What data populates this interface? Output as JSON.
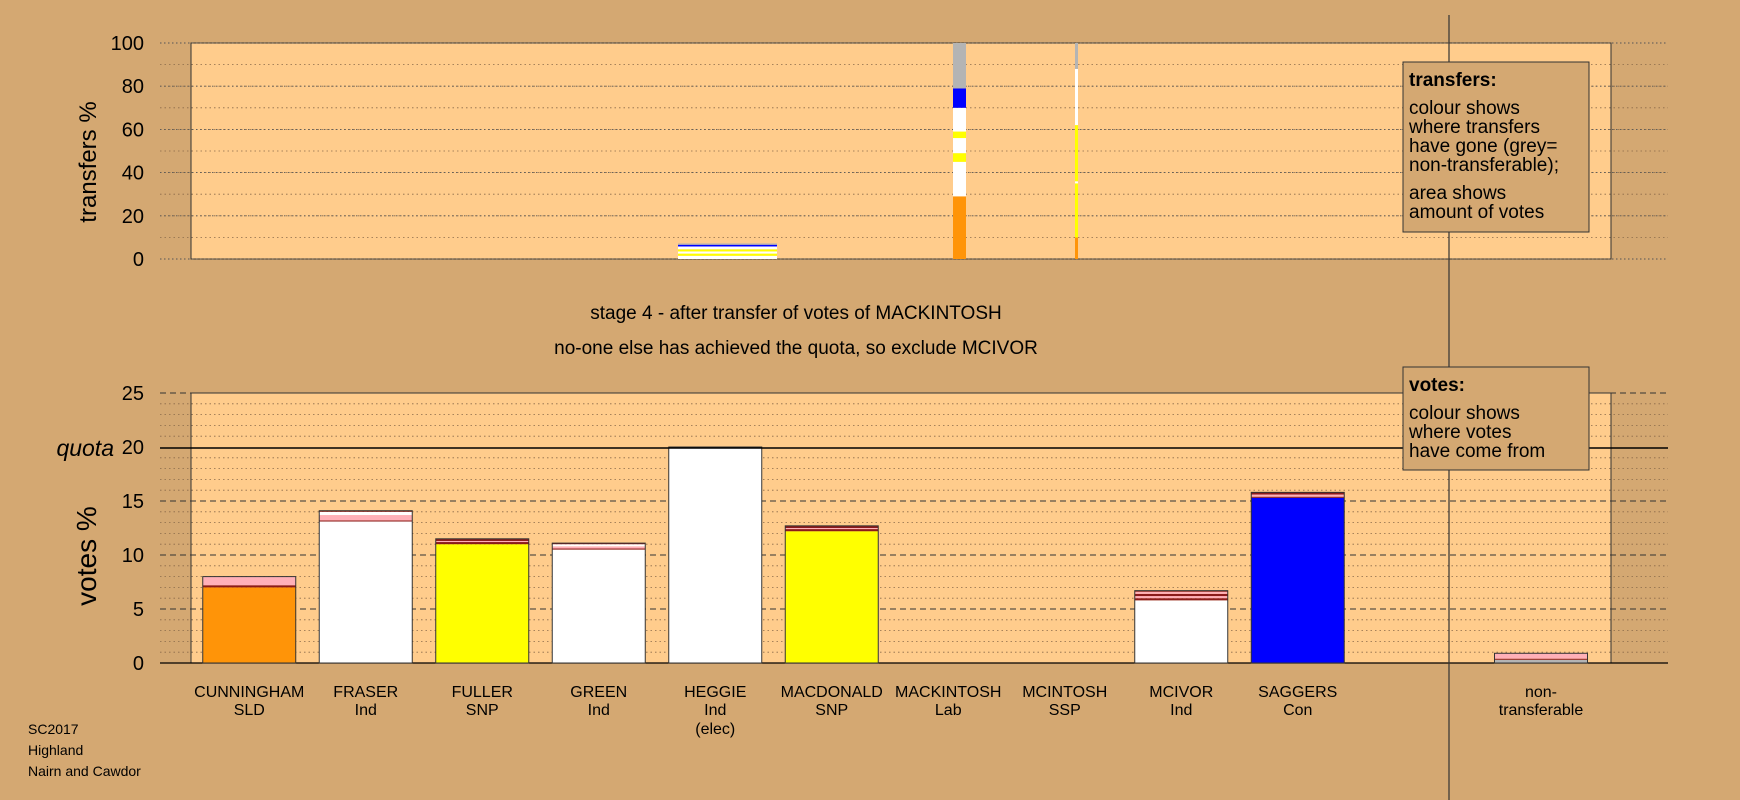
{
  "colors": {
    "background": "#d4a872",
    "plot_bg": "#ffcc8c",
    "SLD": "#ff9408",
    "Ind": "#ffffff",
    "SNP": "#ffff00",
    "Con": "#0000ff",
    "Lab": "#e00000",
    "SSP": "#ff3030",
    "nontransferable": "#b4b4b4",
    "prior_red": "#8b1a1a",
    "prior_pink": "#ffb0b8"
  },
  "chart_data": [
    {
      "type": "bar",
      "name": "transfers",
      "ylabel": "transfers %",
      "ylim": [
        0,
        100
      ],
      "yticks": [
        0,
        20,
        40,
        60,
        80,
        100
      ],
      "columns": [
        {
          "candidate": "HEGGIE",
          "width_share": 0.84,
          "segments": [
            {
              "from": 0,
              "to": 1.5,
              "color": "#ffffff"
            },
            {
              "from": 1.5,
              "to": 2.5,
              "color": "#ffff00"
            },
            {
              "from": 2.5,
              "to": 3.5,
              "color": "#ffffff"
            },
            {
              "from": 3.5,
              "to": 4.5,
              "color": "#ffff00"
            },
            {
              "from": 4.5,
              "to": 5.8,
              "color": "#ffffff"
            },
            {
              "from": 5.8,
              "to": 6.6,
              "color": "#0000ff"
            },
            {
              "from": 6.6,
              "to": 7.2,
              "color": "#b4b4b4"
            }
          ]
        },
        {
          "candidate": "MACKINTOSH",
          "width_share": 0.12,
          "segments": [
            {
              "from": 0,
              "to": 29,
              "color": "#ff9408"
            },
            {
              "from": 29,
              "to": 45,
              "color": "#ffffff"
            },
            {
              "from": 45,
              "to": 49,
              "color": "#ffff00"
            },
            {
              "from": 49,
              "to": 56,
              "color": "#ffffff"
            },
            {
              "from": 56,
              "to": 59,
              "color": "#ffff00"
            },
            {
              "from": 59,
              "to": 70,
              "color": "#ffffff"
            },
            {
              "from": 70,
              "to": 79,
              "color": "#0000ff"
            },
            {
              "from": 79,
              "to": 100,
              "color": "#b4b4b4"
            }
          ]
        },
        {
          "candidate": "MCINTOSH",
          "width_share": 0.04,
          "segments": [
            {
              "from": 0,
              "to": 10,
              "color": "#ff9408"
            },
            {
              "from": 10,
              "to": 35,
              "color": "#ffff00"
            },
            {
              "from": 35,
              "to": 36,
              "color": "#ffffff"
            },
            {
              "from": 36,
              "to": 62,
              "color": "#ffff00"
            },
            {
              "from": 62,
              "to": 88,
              "color": "#ffffff"
            },
            {
              "from": 88,
              "to": 100,
              "color": "#b4b4b4"
            }
          ]
        }
      ]
    },
    {
      "type": "bar",
      "name": "votes",
      "ylabel": "votes %",
      "ylim": [
        0,
        25
      ],
      "yticks": [
        0,
        5,
        10,
        15,
        20,
        25
      ],
      "quota": 20,
      "quota_label": "quota",
      "categories": [
        {
          "name": "CUNNINGHAM",
          "party": "SLD",
          "extra": ""
        },
        {
          "name": "FRASER",
          "party": "Ind",
          "extra": ""
        },
        {
          "name": "FULLER",
          "party": "SNP",
          "extra": ""
        },
        {
          "name": "GREEN",
          "party": "Ind",
          "extra": ""
        },
        {
          "name": "HEGGIE",
          "party": "Ind",
          "extra": "(elec)"
        },
        {
          "name": "MACDONALD",
          "party": "SNP",
          "extra": ""
        },
        {
          "name": "MACKINTOSH",
          "party": "Lab",
          "extra": ""
        },
        {
          "name": "MCINTOSH",
          "party": "SSP",
          "extra": ""
        },
        {
          "name": "MCIVOR",
          "party": "Ind",
          "extra": ""
        },
        {
          "name": "SAGGERS",
          "party": "Con",
          "extra": ""
        }
      ],
      "nontransferable_label": [
        "non-",
        "transferable"
      ],
      "stacks": [
        [
          {
            "v": 7.0,
            "c": "#ff9408"
          },
          {
            "v": 0.2,
            "c": "#8b1a1a"
          },
          {
            "v": 0.8,
            "c": "#ffb0b8"
          }
        ],
        [
          {
            "v": 13.1,
            "c": "#ffffff"
          },
          {
            "v": 0.1,
            "c": "#8b1a1a"
          },
          {
            "v": 0.5,
            "c": "#ffb0b8"
          },
          {
            "v": 0.3,
            "c": "#ffffff"
          },
          {
            "v": 0.1,
            "c": "#8b1a1a"
          }
        ],
        [
          {
            "v": 11.0,
            "c": "#ffff00"
          },
          {
            "v": 0.2,
            "c": "#8b1a1a"
          },
          {
            "v": 0.1,
            "c": "#ffb0b8"
          },
          {
            "v": 0.2,
            "c": "#8b1a1a"
          }
        ],
        [
          {
            "v": 10.5,
            "c": "#ffffff"
          },
          {
            "v": 0.1,
            "c": "#8b1a1a"
          },
          {
            "v": 0.2,
            "c": "#ffb0b8"
          },
          {
            "v": 0.2,
            "c": "#ffffff"
          },
          {
            "v": 0.1,
            "c": "#8b1a1a"
          }
        ],
        [
          {
            "v": 20.0,
            "c": "#ffffff"
          }
        ],
        [
          {
            "v": 12.2,
            "c": "#ffff00"
          },
          {
            "v": 0.2,
            "c": "#8b1a1a"
          },
          {
            "v": 0.1,
            "c": "#ffb0b8"
          },
          {
            "v": 0.2,
            "c": "#8b1a1a"
          }
        ],
        [],
        [],
        [
          {
            "v": 5.8,
            "c": "#ffffff"
          },
          {
            "v": 0.2,
            "c": "#8b1a1a"
          },
          {
            "v": 0.2,
            "c": "#ffb0b8"
          },
          {
            "v": 0.2,
            "c": "#8b1a1a"
          },
          {
            "v": 0.2,
            "c": "#ffb0b8"
          },
          {
            "v": 0.1,
            "c": "#8b1a1a"
          }
        ],
        [
          {
            "v": 15.3,
            "c": "#0000ff"
          },
          {
            "v": 0.1,
            "c": "#8b1a1a"
          },
          {
            "v": 0.2,
            "c": "#ffb0b8"
          },
          {
            "v": 0.2,
            "c": "#8b1a1a"
          }
        ]
      ],
      "nontransferable_stack": [
        {
          "v": 0.3,
          "c": "#b4b4b4"
        },
        {
          "v": 0.1,
          "c": "#8b1a1a"
        },
        {
          "v": 0.5,
          "c": "#ffb0b8"
        }
      ]
    }
  ],
  "stage_line1": "stage 4 - after transfer of votes of MACKINTOSH",
  "stage_line2": "no-one else has achieved the quota, so exclude MCIVOR",
  "legend_transfers": {
    "title": "transfers:",
    "lines1": [
      "colour shows",
      "where transfers",
      "have gone (grey=",
      "non-transferable);"
    ],
    "lines2": [
      "area shows",
      "amount of votes"
    ]
  },
  "legend_votes": {
    "title": "votes:",
    "lines": [
      "colour shows",
      "where votes",
      "have come from"
    ]
  },
  "footer": [
    "SC2017",
    "Highland",
    "Nairn and Cawdor"
  ]
}
